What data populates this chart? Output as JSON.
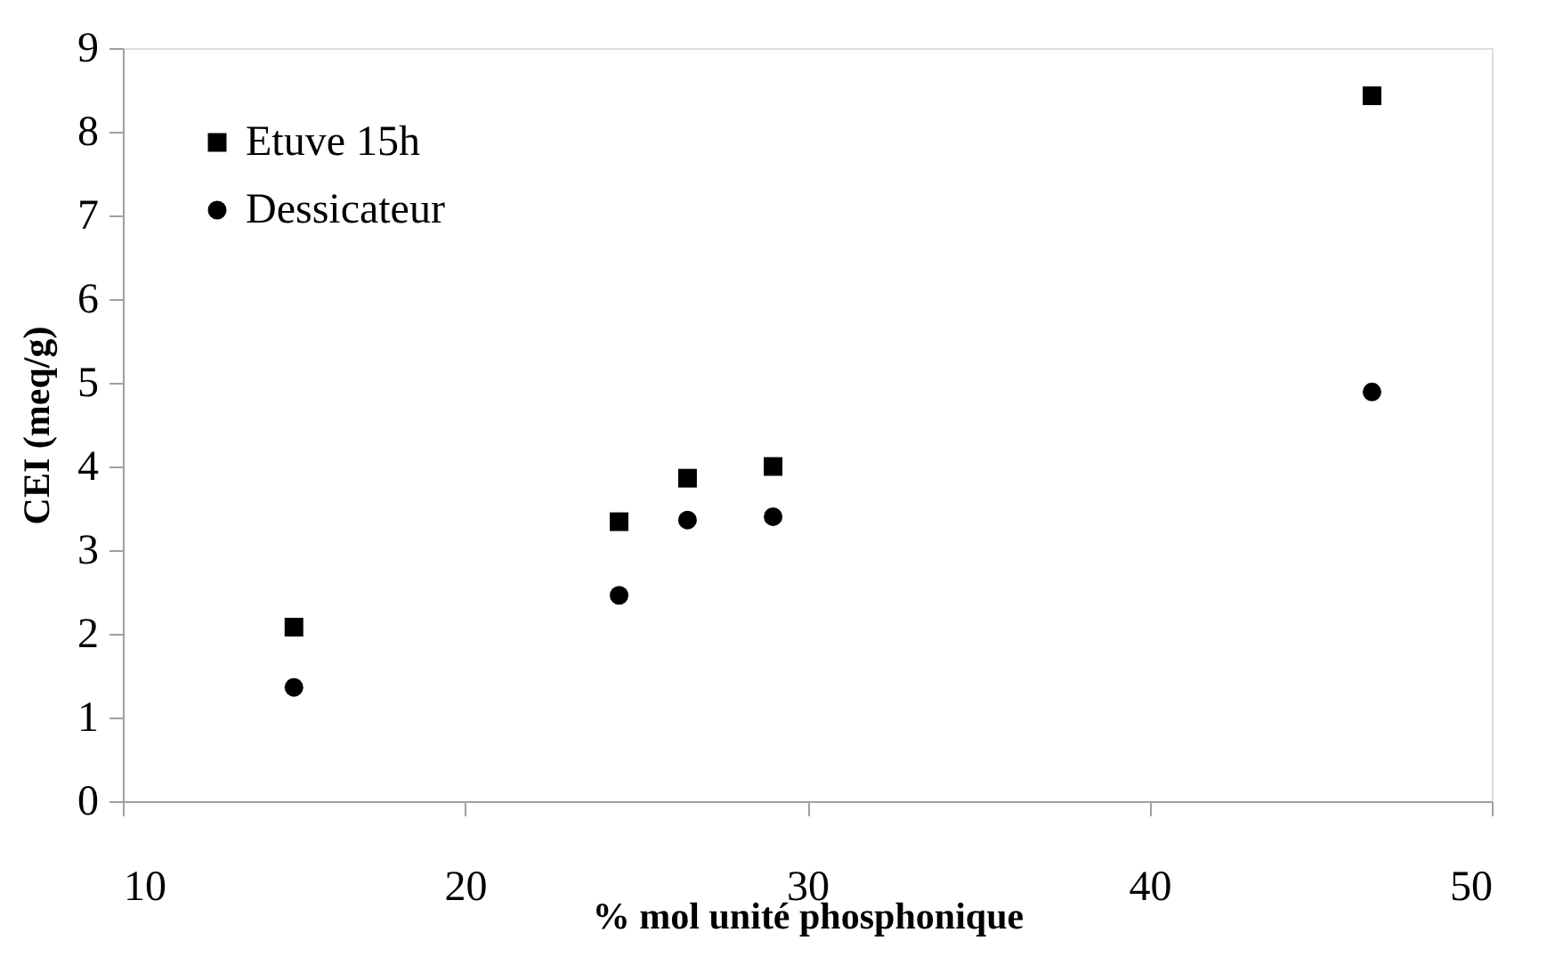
{
  "chart_data": {
    "type": "scatter",
    "xlabel": "% mol unité phosphonique",
    "ylabel": "CEI (meq/g)",
    "x": [
      15,
      24.5,
      26.5,
      29,
      46.5
    ],
    "series": [
      {
        "name": "Etuve 15h",
        "color": "#000000",
        "marker": "square",
        "values": [
          2.08,
          3.34,
          3.86,
          4.0,
          8.43
        ]
      },
      {
        "name": "Dessicateur",
        "color": "#000000",
        "marker": "circle",
        "values": [
          1.36,
          2.46,
          3.36,
          3.4,
          4.89
        ]
      }
    ],
    "xlim": [
      10,
      50
    ],
    "xticks": [
      10,
      20,
      30,
      40,
      50
    ],
    "ylim": [
      0,
      9
    ],
    "yticks": [
      0,
      1,
      2,
      3,
      4,
      5,
      6,
      7,
      8,
      9
    ],
    "grid": false,
    "legend": "top left"
  }
}
